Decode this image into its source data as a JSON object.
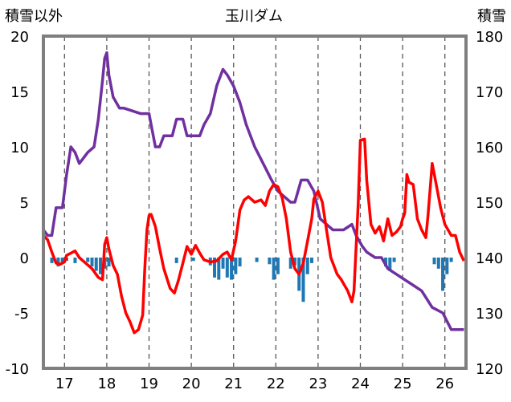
{
  "chart_data": {
    "type": "line",
    "title": "玉川ダム",
    "ylabel": "積雪以外",
    "y2label": "積雪",
    "ylim": [
      -10,
      20
    ],
    "y2lim": [
      120,
      180
    ],
    "xlim": [
      16.5,
      26.5
    ],
    "y_ticks": [
      20,
      15,
      10,
      5,
      0,
      -5,
      -10
    ],
    "y2_ticks": [
      180,
      170,
      160,
      150,
      140,
      130,
      120
    ],
    "x_ticks": [
      17,
      18,
      19,
      20,
      21,
      22,
      23,
      24,
      25,
      26
    ],
    "grid": "vertical-dashed",
    "colors": {
      "snow": "#7030A0",
      "temp": "#FF0000",
      "precip": "#1F77B4",
      "frame": "#7F7F7F",
      "grid": "#595959"
    },
    "series": [
      {
        "axis": "y2",
        "values": [
          [
            16.5,
            145
          ],
          [
            16.6,
            144
          ],
          [
            16.7,
            144
          ],
          [
            16.8,
            149
          ],
          [
            16.95,
            149
          ],
          [
            17.0,
            152
          ],
          [
            17.05,
            155
          ],
          [
            17.15,
            160
          ],
          [
            17.25,
            159
          ],
          [
            17.35,
            157
          ],
          [
            17.45,
            158
          ],
          [
            17.55,
            159
          ],
          [
            17.7,
            160
          ],
          [
            17.8,
            165
          ],
          [
            17.9,
            172
          ],
          [
            17.95,
            176
          ],
          [
            18.0,
            177
          ],
          [
            18.05,
            173
          ],
          [
            18.15,
            169
          ],
          [
            18.3,
            167
          ],
          [
            18.4,
            167
          ],
          [
            18.8,
            166
          ],
          [
            19.0,
            166
          ],
          [
            19.05,
            164
          ],
          [
            19.15,
            160
          ],
          [
            19.25,
            160
          ],
          [
            19.35,
            162
          ],
          [
            19.55,
            162
          ],
          [
            19.65,
            165
          ],
          [
            19.8,
            165
          ],
          [
            19.9,
            162
          ],
          [
            20.2,
            162
          ],
          [
            20.3,
            164
          ],
          [
            20.45,
            166
          ],
          [
            20.6,
            171
          ],
          [
            20.75,
            174
          ],
          [
            20.85,
            173
          ],
          [
            21.0,
            171
          ],
          [
            21.15,
            168
          ],
          [
            21.3,
            164
          ],
          [
            21.5,
            160
          ],
          [
            21.7,
            157
          ],
          [
            21.9,
            154
          ],
          [
            22.05,
            152
          ],
          [
            22.2,
            151
          ],
          [
            22.35,
            150
          ],
          [
            22.45,
            150
          ],
          [
            22.6,
            154
          ],
          [
            22.75,
            154
          ],
          [
            22.9,
            152
          ],
          [
            23.05,
            147
          ],
          [
            23.2,
            146
          ],
          [
            23.35,
            145
          ],
          [
            23.6,
            145
          ],
          [
            23.8,
            146
          ],
          [
            23.9,
            144
          ],
          [
            24.05,
            142
          ],
          [
            24.15,
            141
          ],
          [
            24.35,
            140
          ],
          [
            24.5,
            140
          ],
          [
            24.65,
            138
          ],
          [
            24.85,
            137
          ],
          [
            25.05,
            136
          ],
          [
            25.25,
            135
          ],
          [
            25.45,
            134
          ],
          [
            25.7,
            131
          ],
          [
            25.95,
            130
          ],
          [
            26.15,
            127
          ],
          [
            26.3,
            127
          ],
          [
            26.45,
            127
          ]
        ]
      },
      {
        "axis": "y",
        "values": [
          [
            16.5,
            2.0
          ],
          [
            16.6,
            1.6
          ],
          [
            16.7,
            0.5
          ],
          [
            16.8,
            -0.5
          ],
          [
            16.9,
            -0.6
          ],
          [
            17.0,
            -0.4
          ],
          [
            17.05,
            0.2
          ],
          [
            17.15,
            0.4
          ],
          [
            17.25,
            0.6
          ],
          [
            17.35,
            0.0
          ],
          [
            17.5,
            -0.5
          ],
          [
            17.65,
            -1.0
          ],
          [
            17.8,
            -1.8
          ],
          [
            17.9,
            -2.0
          ],
          [
            17.95,
            1.2
          ],
          [
            18.0,
            1.8
          ],
          [
            18.05,
            0.8
          ],
          [
            18.15,
            -0.7
          ],
          [
            18.25,
            -1.5
          ],
          [
            18.35,
            -3.5
          ],
          [
            18.45,
            -5.0
          ],
          [
            18.55,
            -5.8
          ],
          [
            18.65,
            -6.8
          ],
          [
            18.75,
            -6.5
          ],
          [
            18.85,
            -5.2
          ],
          [
            18.9,
            -1.0
          ],
          [
            18.95,
            2.5
          ],
          [
            19.0,
            3.8
          ],
          [
            19.05,
            3.9
          ],
          [
            19.15,
            2.8
          ],
          [
            19.25,
            0.8
          ],
          [
            19.35,
            -1.0
          ],
          [
            19.5,
            -2.8
          ],
          [
            19.6,
            -3.2
          ],
          [
            19.7,
            -2.0
          ],
          [
            19.8,
            -0.5
          ],
          [
            19.9,
            1.0
          ],
          [
            20.0,
            0.3
          ],
          [
            20.1,
            1.1
          ],
          [
            20.2,
            0.4
          ],
          [
            20.3,
            -0.2
          ],
          [
            20.45,
            -0.4
          ],
          [
            20.6,
            -0.3
          ],
          [
            20.75,
            0.3
          ],
          [
            20.85,
            0.5
          ],
          [
            20.95,
            -0.2
          ],
          [
            21.05,
            1.5
          ],
          [
            21.15,
            4.3
          ],
          [
            21.25,
            5.2
          ],
          [
            21.35,
            5.5
          ],
          [
            21.5,
            5.0
          ],
          [
            21.65,
            5.2
          ],
          [
            21.75,
            4.7
          ],
          [
            21.85,
            6.0
          ],
          [
            21.95,
            6.6
          ],
          [
            22.05,
            6.4
          ],
          [
            22.15,
            5.4
          ],
          [
            22.25,
            3.5
          ],
          [
            22.35,
            0.5
          ],
          [
            22.45,
            -1.0
          ],
          [
            22.55,
            -1.5
          ],
          [
            22.65,
            -0.5
          ],
          [
            22.75,
            1.5
          ],
          [
            22.85,
            3.5
          ],
          [
            22.9,
            5.3
          ],
          [
            23.0,
            6.0
          ],
          [
            23.1,
            5.0
          ],
          [
            23.2,
            2.5
          ],
          [
            23.3,
            0.0
          ],
          [
            23.45,
            -1.5
          ],
          [
            23.55,
            -2.0
          ],
          [
            23.7,
            -3.0
          ],
          [
            23.8,
            -4.0
          ],
          [
            23.85,
            -3.0
          ],
          [
            23.95,
            5.0
          ],
          [
            24.0,
            10.6
          ],
          [
            24.1,
            10.7
          ],
          [
            24.15,
            7.0
          ],
          [
            24.25,
            3.0
          ],
          [
            24.35,
            2.2
          ],
          [
            24.45,
            2.8
          ],
          [
            24.55,
            1.5
          ],
          [
            24.65,
            3.5
          ],
          [
            24.75,
            2.0
          ],
          [
            24.85,
            2.3
          ],
          [
            24.95,
            2.8
          ],
          [
            25.0,
            3.5
          ],
          [
            25.05,
            4.0
          ],
          [
            25.1,
            7.5
          ],
          [
            25.15,
            6.8
          ],
          [
            25.25,
            6.6
          ],
          [
            25.35,
            3.5
          ],
          [
            25.45,
            2.5
          ],
          [
            25.55,
            1.8
          ],
          [
            25.6,
            3.8
          ],
          [
            25.7,
            8.5
          ],
          [
            25.8,
            6.5
          ],
          [
            25.9,
            4.5
          ],
          [
            26.0,
            3.0
          ],
          [
            26.15,
            2.0
          ],
          [
            26.25,
            2.0
          ],
          [
            26.35,
            0.5
          ],
          [
            26.45,
            -0.3
          ]
        ]
      },
      {
        "axis": "y",
        "type": "bar",
        "values": [
          [
            16.7,
            -0.5
          ],
          [
            16.85,
            -0.8
          ],
          [
            16.95,
            -0.5
          ],
          [
            17.05,
            -0.3
          ],
          [
            17.25,
            -0.5
          ],
          [
            17.55,
            -0.4
          ],
          [
            17.65,
            -0.8
          ],
          [
            17.75,
            -1.2
          ],
          [
            17.85,
            -1.5
          ],
          [
            17.95,
            -1.0
          ],
          [
            18.05,
            -0.8
          ],
          [
            19.65,
            -0.5
          ],
          [
            20.05,
            -0.3
          ],
          [
            20.45,
            -0.7
          ],
          [
            20.55,
            -1.8
          ],
          [
            20.65,
            -2.0
          ],
          [
            20.75,
            -1.0
          ],
          [
            20.85,
            -1.8
          ],
          [
            20.95,
            -2.0
          ],
          [
            21.05,
            -1.5
          ],
          [
            21.15,
            -0.8
          ],
          [
            21.55,
            -0.4
          ],
          [
            21.85,
            -0.6
          ],
          [
            21.95,
            -2.0
          ],
          [
            22.05,
            -1.5
          ],
          [
            22.35,
            -1.0
          ],
          [
            22.45,
            -0.7
          ],
          [
            22.55,
            -3.0
          ],
          [
            22.65,
            -4.0
          ],
          [
            22.75,
            -1.5
          ],
          [
            22.85,
            -0.5
          ],
          [
            24.6,
            -0.8
          ],
          [
            24.7,
            -1.2
          ],
          [
            24.8,
            -0.4
          ],
          [
            25.75,
            -0.6
          ],
          [
            25.85,
            -1.0
          ],
          [
            25.95,
            -3.0
          ],
          [
            26.05,
            -1.5
          ],
          [
            26.15,
            -0.4
          ]
        ]
      }
    ]
  }
}
